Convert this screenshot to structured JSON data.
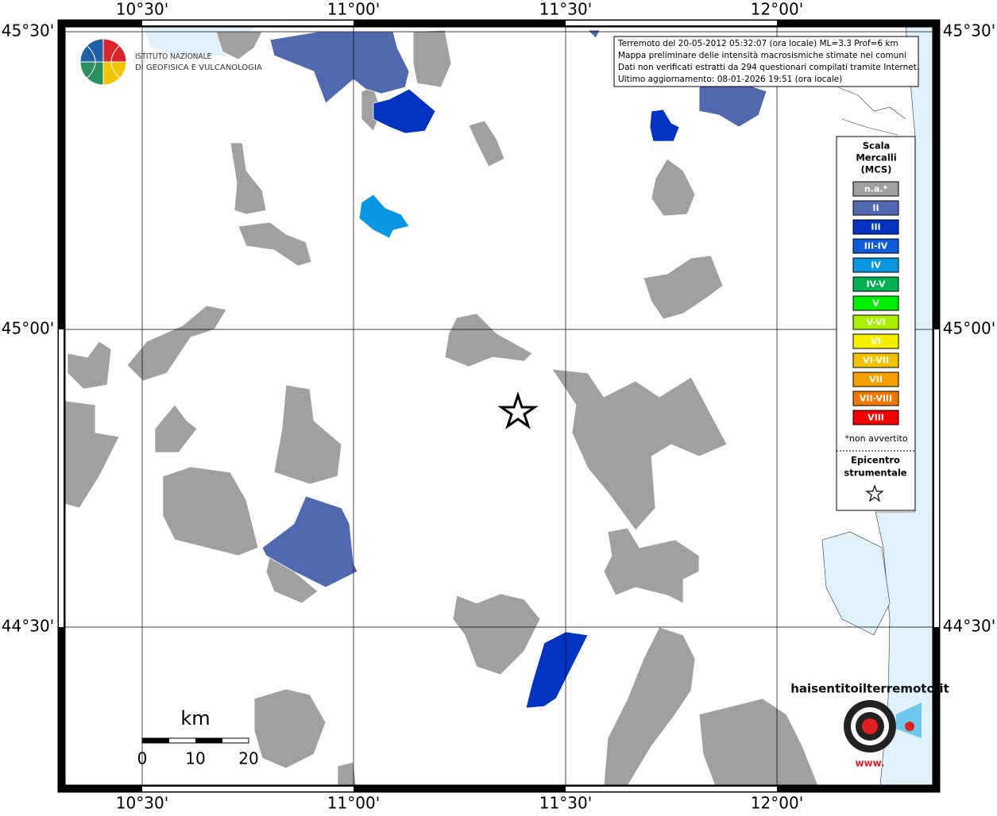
{
  "map": {
    "lon_labels": [
      "10°30'",
      "11°00'",
      "11°30'",
      "12°00'"
    ],
    "lat_labels": [
      "45°30'",
      "45°00'",
      "44°30'"
    ],
    "info": [
      "Terremoto del 20-05-2012 05:32:07 (ora locale) ML=3.3 Prof=6 km",
      "Mappa preliminare delle intensità macrosismiche stimate nei comuni",
      "Dati non verificati estratti da 294 questionari compilati tramite Internet.",
      "Ultimo aggiornamento: 08-01-2026 19:51 (ora locale)"
    ],
    "logo": [
      "ISTITUTO NAZIONALE",
      "DI GEOFISICA E VULCANOLOGIA"
    ],
    "legend": {
      "title": [
        "Scala",
        "Mercalli",
        "(MCS)"
      ],
      "items": [
        {
          "label": "n.a.*",
          "color": "#a0a0a0"
        },
        {
          "label": "II",
          "color": "#4f68b0"
        },
        {
          "label": "III",
          "color": "#0033c0"
        },
        {
          "label": "III-IV",
          "color": "#0d5bd6"
        },
        {
          "label": "IV",
          "color": "#0a96e0"
        },
        {
          "label": "IV-V",
          "color": "#00b050"
        },
        {
          "label": "V",
          "color": "#00ee00"
        },
        {
          "label": "V-VI",
          "color": "#a8f000"
        },
        {
          "label": "VI",
          "color": "#f5f000"
        },
        {
          "label": "VI-VII",
          "color": "#f2c200"
        },
        {
          "label": "VII",
          "color": "#f5a000"
        },
        {
          "label": "VII-VIII",
          "color": "#f07800"
        },
        {
          "label": "VIII",
          "color": "#f00000"
        }
      ],
      "note": "*non avvertito",
      "epicenter": [
        "Epicentro",
        "strumentale"
      ]
    },
    "scale": {
      "unit": "km",
      "ticks": [
        0,
        10,
        20
      ]
    },
    "brand": [
      "haisentitoilterremoto.it",
      "www."
    ]
  }
}
